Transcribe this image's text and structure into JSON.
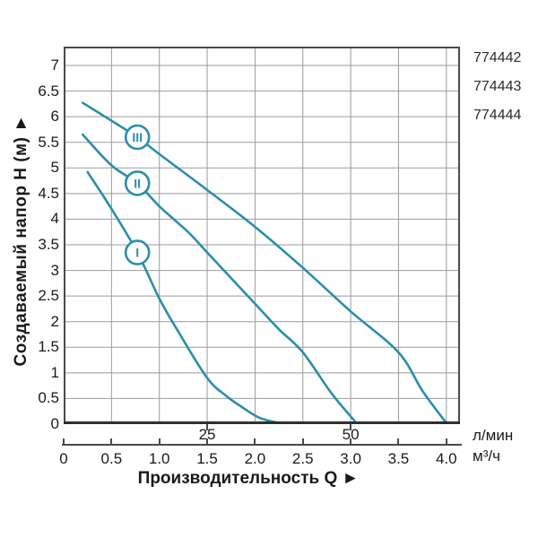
{
  "product_codes": [
    "774442",
    "774443",
    "774444"
  ],
  "y_axis": {
    "title": "Создаваемый напор H (м) ►",
    "ticks": [
      {
        "h": 7,
        "label": "7"
      },
      {
        "h": 6.5,
        "label": "6.5"
      },
      {
        "h": 6,
        "label": "6"
      },
      {
        "h": 5.5,
        "label": "5.5"
      },
      {
        "h": 5,
        "label": "5"
      },
      {
        "h": 4.5,
        "label": "4.5"
      },
      {
        "h": 4,
        "label": "4"
      },
      {
        "h": 3.5,
        "label": "3.5"
      },
      {
        "h": 3,
        "label": "3"
      },
      {
        "h": 2.5,
        "label": "2.5"
      },
      {
        "h": 2,
        "label": "2"
      },
      {
        "h": 1.5,
        "label": "1.5"
      },
      {
        "h": 1,
        "label": "1"
      },
      {
        "h": 0.5,
        "label": "0.5"
      },
      {
        "h": 0,
        "label": "0"
      }
    ]
  },
  "x_axis": {
    "title": "Производительность Q ►",
    "lmin": {
      "unit": "л/мин",
      "ticks": [
        {
          "q": 1.5,
          "label": "25"
        },
        {
          "q": 3,
          "label": "50"
        }
      ]
    },
    "m3h": {
      "unit": "м³/ч",
      "ticks": [
        {
          "q": 0,
          "label": "0"
        },
        {
          "q": 0.5,
          "label": "0.5"
        },
        {
          "q": 1,
          "label": "1.0"
        },
        {
          "q": 1.5,
          "label": "1.5"
        },
        {
          "q": 2,
          "label": "2.0"
        },
        {
          "q": 2.5,
          "label": "2.5"
        },
        {
          "q": 3,
          "label": "3.0"
        },
        {
          "q": 3.5,
          "label": "3.5"
        },
        {
          "q": 4,
          "label": "4.0"
        }
      ]
    }
  },
  "colors": {
    "curve": "#2b8ead",
    "grid": "#9b9b9b",
    "frame": "#4a4a4a",
    "frame_bottom": "#2f2f2f",
    "text": "#1a1a1a",
    "codes": "#2b2b2b"
  },
  "chart_data": {
    "type": "line",
    "title": "",
    "xlabel": "Производительность Q",
    "ylabel": "Создаваемый напор H (м)",
    "x_unit_primary": "м³/ч",
    "x_unit_secondary": "л/мин",
    "x_ticks_m3h": [
      0,
      0.5,
      1.0,
      1.5,
      2.0,
      2.5,
      3.0,
      3.5,
      4.0
    ],
    "x_ticks_lmin": [
      25,
      50
    ],
    "xlim": [
      0,
      4.15
    ],
    "ylim": [
      0,
      7.35
    ],
    "grid": true,
    "grid_step_x": 0.5,
    "grid_step_y": 0.5,
    "legend_position": "circled roman numerals on curves",
    "series": [
      {
        "name": "I",
        "marker": {
          "q": 0.77,
          "h": 3.35
        },
        "points": [
          [
            0.25,
            4.92
          ],
          [
            0.5,
            4.2
          ],
          [
            0.77,
            3.35
          ],
          [
            1.0,
            2.45
          ],
          [
            1.2,
            1.8
          ],
          [
            1.5,
            0.9
          ],
          [
            1.7,
            0.55
          ],
          [
            1.85,
            0.35
          ],
          [
            2.05,
            0.12
          ],
          [
            2.26,
            0.02
          ]
        ]
      },
      {
        "name": "II",
        "marker": {
          "q": 0.77,
          "h": 4.7
        },
        "points": [
          [
            0.2,
            5.65
          ],
          [
            0.5,
            5.05
          ],
          [
            0.77,
            4.7
          ],
          [
            1.0,
            4.25
          ],
          [
            1.3,
            3.75
          ],
          [
            1.5,
            3.35
          ],
          [
            1.75,
            2.85
          ],
          [
            2.0,
            2.35
          ],
          [
            2.25,
            1.85
          ],
          [
            2.5,
            1.4
          ],
          [
            2.8,
            0.6
          ],
          [
            3.06,
            0.02
          ]
        ]
      },
      {
        "name": "III",
        "marker": {
          "q": 0.77,
          "h": 5.6
        },
        "points": [
          [
            0.2,
            6.27
          ],
          [
            0.5,
            5.92
          ],
          [
            0.77,
            5.6
          ],
          [
            1.0,
            5.27
          ],
          [
            1.5,
            4.57
          ],
          [
            2.0,
            3.85
          ],
          [
            2.5,
            3.05
          ],
          [
            3.0,
            2.2
          ],
          [
            3.5,
            1.4
          ],
          [
            3.75,
            0.65
          ],
          [
            4.0,
            0.02
          ]
        ]
      }
    ]
  }
}
